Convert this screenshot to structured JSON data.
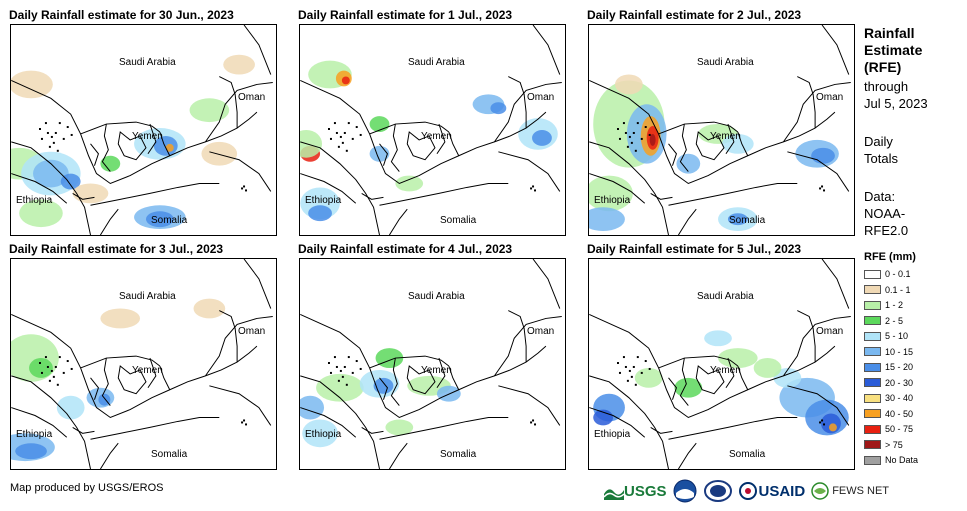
{
  "panels": [
    {
      "title": "Daily Rainfall estimate for 30 Jun., 2023"
    },
    {
      "title": "Daily Rainfall estimate for 1 Jul., 2023"
    },
    {
      "title": "Daily Rainfall estimate for 2 Jul., 2023"
    },
    {
      "title": "Daily Rainfall estimate for 3 Jul., 2023"
    },
    {
      "title": "Daily Rainfall estimate for 4 Jul., 2023"
    },
    {
      "title": "Daily Rainfall estimate for 5 Jul., 2023"
    }
  ],
  "map_labels": {
    "saudi": "Saudi Arabia",
    "oman": "Oman",
    "yemen": "Yemen",
    "ethiopia": "Ethiopia",
    "somalia": "Somalia"
  },
  "sidebar": {
    "title_line1": "Rainfall",
    "title_line2": "Estimate",
    "title_line3": "(RFE)",
    "through": "through",
    "date": "Jul 5, 2023",
    "daily": "Daily",
    "totals": "Totals",
    "data_label": "Data:",
    "source1": "NOAA-",
    "source2": "RFE2.0"
  },
  "legend": {
    "title": "RFE (mm)",
    "items": [
      {
        "label": "0 - 0.1",
        "color": "#ffffff"
      },
      {
        "label": "0.1 - 1",
        "color": "#f0d9b5"
      },
      {
        "label": "1 - 2",
        "color": "#b8f0a8"
      },
      {
        "label": "2 - 5",
        "color": "#5cd85c"
      },
      {
        "label": "5 - 10",
        "color": "#b0e4f8"
      },
      {
        "label": "10 - 15",
        "color": "#7ab8f0"
      },
      {
        "label": "15 - 20",
        "color": "#4a8ee8"
      },
      {
        "label": "20 - 30",
        "color": "#2a5cd8"
      },
      {
        "label": "30 - 40",
        "color": "#f8e080"
      },
      {
        "label": "40 - 50",
        "color": "#f8a020"
      },
      {
        "label": "50 - 75",
        "color": "#e82010"
      },
      {
        "label": "> 75",
        "color": "#a01818"
      },
      {
        "label": "No Data",
        "color": "#a0a0a0"
      }
    ]
  },
  "footer": {
    "credit": "Map produced by USGS/EROS",
    "usgs": "USGS",
    "usaid": "USAID",
    "fewsnet": "FEWS NET"
  }
}
